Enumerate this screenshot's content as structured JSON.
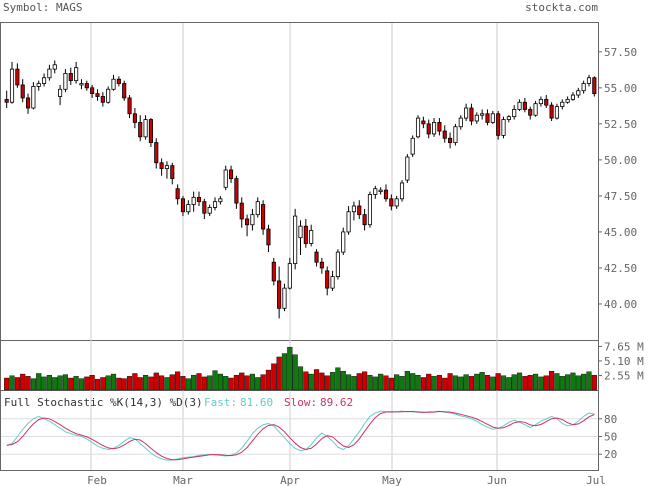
{
  "header": {
    "symbol_text": "Symbol: MAGS",
    "brand": "stockta.com"
  },
  "chart_data": {
    "type": "candlestick",
    "x_axis": {
      "ticks": [
        "Feb",
        "Mar",
        "Apr",
        "May",
        "Jun",
        "Jul"
      ]
    },
    "price": {
      "ylim": [
        37.5,
        59.5
      ],
      "ticks": [
        "57.50",
        "55.00",
        "52.50",
        "50.00",
        "47.50",
        "45.00",
        "42.50",
        "40.00"
      ],
      "candles": [
        [
          54.2,
          54.8,
          53.6,
          54.0
        ],
        [
          54.0,
          56.8,
          53.9,
          56.3
        ],
        [
          56.3,
          56.7,
          55.0,
          55.2
        ],
        [
          55.2,
          55.6,
          54.0,
          54.3
        ],
        [
          54.3,
          54.6,
          53.2,
          53.6
        ],
        [
          53.6,
          55.4,
          53.5,
          55.1
        ],
        [
          55.1,
          55.5,
          54.8,
          55.3
        ],
        [
          55.3,
          56.0,
          55.1,
          55.7
        ],
        [
          55.7,
          56.6,
          55.5,
          56.3
        ],
        [
          56.3,
          56.9,
          56.0,
          56.6
        ],
        [
          54.4,
          55.2,
          53.8,
          54.9
        ],
        [
          54.9,
          56.3,
          54.7,
          56.0
        ],
        [
          56.0,
          56.4,
          55.2,
          55.5
        ],
        [
          55.5,
          56.8,
          55.3,
          56.4
        ],
        [
          55.2,
          55.6,
          54.9,
          55.3
        ],
        [
          55.3,
          55.5,
          54.8,
          55.0
        ],
        [
          55.0,
          55.2,
          54.3,
          54.6
        ],
        [
          54.6,
          54.9,
          54.1,
          54.4
        ],
        [
          54.4,
          54.7,
          53.7,
          54.0
        ],
        [
          54.0,
          55.1,
          53.9,
          54.9
        ],
        [
          54.9,
          55.9,
          54.8,
          55.6
        ],
        [
          55.6,
          55.8,
          55.1,
          55.3
        ],
        [
          55.3,
          55.5,
          54.1,
          54.3
        ],
        [
          54.3,
          54.5,
          52.9,
          53.2
        ],
        [
          53.2,
          53.6,
          52.2,
          52.6
        ],
        [
          52.6,
          53.1,
          51.3,
          51.6
        ],
        [
          51.6,
          53.1,
          51.4,
          52.8
        ],
        [
          52.8,
          52.9,
          50.9,
          51.2
        ],
        [
          51.2,
          51.5,
          49.4,
          49.8
        ],
        [
          49.8,
          50.1,
          48.9,
          49.4
        ],
        [
          49.4,
          49.9,
          48.7,
          49.6
        ],
        [
          49.6,
          49.8,
          48.3,
          48.7
        ],
        [
          48.0,
          48.3,
          46.9,
          47.3
        ],
        [
          47.3,
          47.5,
          46.1,
          46.4
        ],
        [
          46.4,
          47.2,
          46.2,
          46.9
        ],
        [
          46.9,
          47.8,
          46.4,
          47.4
        ],
        [
          47.4,
          47.8,
          46.8,
          47.1
        ],
        [
          47.1,
          47.3,
          45.9,
          46.3
        ],
        [
          46.3,
          46.9,
          46.1,
          46.7
        ],
        [
          46.7,
          47.4,
          46.5,
          47.1
        ],
        [
          47.1,
          47.5,
          46.9,
          47.3
        ],
        [
          48.1,
          49.6,
          47.9,
          49.3
        ],
        [
          49.3,
          49.6,
          48.4,
          48.7
        ],
        [
          48.7,
          48.9,
          46.6,
          47.0
        ],
        [
          47.0,
          47.4,
          45.3,
          45.9
        ],
        [
          45.9,
          46.2,
          44.7,
          45.5
        ],
        [
          45.5,
          46.6,
          45.1,
          46.2
        ],
        [
          46.2,
          47.4,
          46.0,
          47.1
        ],
        [
          46.9,
          47.2,
          44.8,
          45.2
        ],
        [
          45.2,
          45.5,
          43.6,
          44.1
        ],
        [
          42.9,
          43.2,
          41.3,
          41.6
        ],
        [
          41.6,
          42.6,
          39.0,
          39.7
        ],
        [
          39.7,
          41.4,
          39.5,
          41.1
        ],
        [
          41.1,
          43.2,
          41.0,
          42.8
        ],
        [
          42.8,
          46.6,
          42.4,
          46.1
        ],
        [
          44.6,
          45.8,
          43.4,
          45.4
        ],
        [
          45.4,
          45.9,
          43.9,
          44.2
        ],
        [
          44.2,
          45.5,
          44.0,
          45.1
        ],
        [
          43.6,
          43.8,
          42.6,
          42.9
        ],
        [
          42.9,
          43.2,
          42.1,
          42.5
        ],
        [
          42.3,
          42.6,
          40.6,
          41.1
        ],
        [
          41.1,
          42.3,
          40.9,
          41.9
        ],
        [
          41.9,
          43.8,
          41.7,
          43.6
        ],
        [
          43.6,
          45.3,
          43.4,
          45.0
        ],
        [
          45.0,
          46.8,
          44.8,
          46.4
        ],
        [
          46.4,
          47.1,
          45.8,
          46.8
        ],
        [
          46.8,
          47.2,
          45.9,
          46.2
        ],
        [
          46.2,
          46.6,
          45.1,
          45.5
        ],
        [
          45.5,
          47.8,
          45.3,
          47.6
        ],
        [
          47.6,
          48.2,
          47.3,
          48.0
        ],
        [
          47.8,
          48.1,
          47.6,
          47.9
        ],
        [
          47.9,
          48.3,
          47.1,
          47.3
        ],
        [
          47.3,
          47.6,
          46.5,
          46.8
        ],
        [
          46.8,
          47.5,
          46.6,
          47.3
        ],
        [
          47.3,
          48.6,
          47.1,
          48.4
        ],
        [
          48.6,
          50.4,
          48.4,
          50.2
        ],
        [
          50.4,
          51.7,
          50.2,
          51.5
        ],
        [
          51.6,
          53.1,
          51.5,
          52.9
        ],
        [
          52.7,
          53.0,
          52.2,
          52.5
        ],
        [
          52.5,
          52.8,
          51.5,
          51.8
        ],
        [
          51.8,
          52.9,
          51.6,
          52.6
        ],
        [
          52.6,
          52.9,
          51.7,
          52.0
        ],
        [
          52.0,
          52.4,
          51.2,
          51.5
        ],
        [
          51.5,
          51.9,
          50.8,
          51.2
        ],
        [
          51.2,
          52.5,
          51.0,
          52.3
        ],
        [
          52.3,
          53.1,
          52.1,
          52.9
        ],
        [
          52.9,
          53.9,
          52.7,
          53.6
        ],
        [
          53.6,
          53.9,
          52.4,
          52.7
        ],
        [
          52.7,
          53.3,
          52.5,
          53.1
        ],
        [
          53.1,
          53.5,
          52.8,
          53.2
        ],
        [
          53.2,
          53.5,
          52.4,
          52.6
        ],
        [
          52.6,
          53.4,
          52.5,
          53.2
        ],
        [
          53.2,
          53.4,
          51.4,
          51.7
        ],
        [
          51.7,
          53.0,
          51.5,
          52.8
        ],
        [
          52.8,
          53.1,
          52.6,
          53.0
        ],
        [
          53.0,
          53.8,
          52.8,
          53.5
        ],
        [
          53.5,
          54.2,
          53.4,
          54.0
        ],
        [
          54.0,
          54.3,
          53.3,
          53.5
        ],
        [
          53.5,
          53.7,
          52.8,
          53.1
        ],
        [
          53.1,
          54.1,
          53.0,
          53.9
        ],
        [
          53.9,
          54.4,
          53.7,
          54.2
        ],
        [
          54.2,
          54.5,
          53.6,
          53.8
        ],
        [
          53.8,
          54.0,
          52.7,
          52.9
        ],
        [
          52.9,
          53.9,
          52.8,
          53.7
        ],
        [
          53.7,
          54.2,
          53.5,
          54.0
        ],
        [
          54.0,
          54.4,
          53.9,
          54.2
        ],
        [
          54.2,
          54.7,
          54.1,
          54.5
        ],
        [
          54.5,
          55.0,
          54.3,
          54.8
        ],
        [
          54.8,
          55.5,
          54.6,
          55.3
        ],
        [
          55.3,
          55.9,
          55.1,
          55.7
        ],
        [
          55.7,
          55.8,
          54.4,
          54.6
        ]
      ]
    },
    "volume": {
      "unit": "M",
      "ticks": [
        "7.65 M",
        "5.10 M",
        "2.55 M"
      ],
      "ylim": [
        0,
        8.6
      ],
      "values": [
        2.1,
        2.5,
        2.2,
        2.8,
        2.4,
        2.0,
        2.9,
        2.3,
        2.6,
        2.2,
        2.5,
        2.7,
        2.1,
        2.4,
        2.0,
        2.3,
        2.6,
        1.9,
        2.2,
        2.5,
        2.8,
        2.1,
        2.0,
        2.4,
        2.9,
        2.2,
        2.6,
        2.3,
        3.0,
        2.5,
        2.2,
        2.7,
        3.2,
        2.4,
        2.0,
        2.6,
        2.9,
        2.3,
        2.5,
        3.4,
        2.8,
        2.4,
        2.1,
        2.6,
        3.0,
        2.5,
        2.8,
        2.2,
        2.7,
        3.5,
        4.6,
        5.8,
        6.4,
        7.5,
        6.2,
        4.1,
        3.2,
        2.8,
        3.6,
        3.0,
        2.5,
        3.1,
        3.9,
        3.3,
        2.7,
        2.4,
        2.9,
        3.2,
        2.6,
        2.3,
        2.8,
        2.5,
        2.1,
        2.7,
        2.4,
        3.3,
        2.9,
        2.6,
        2.2,
        2.8,
        2.4,
        2.6,
        2.1,
        2.9,
        2.5,
        2.3,
        2.7,
        2.4,
        2.8,
        3.1,
        2.6,
        2.3,
        2.9,
        2.5,
        2.2,
        2.7,
        3.0,
        2.4,
        2.6,
        2.8,
        2.3,
        2.5,
        3.3,
        2.9,
        2.4,
        2.7,
        3.0,
        2.5,
        2.8,
        3.2,
        2.6
      ]
    },
    "stochastic": {
      "title": "Full Stochastic %K(14,3) %D(3)",
      "fast_label": "Fast:",
      "fast_value": "81.60",
      "slow_label": "Slow:",
      "slow_value": "89.62",
      "ylim": [
        0,
        100
      ],
      "ticks": [
        "80",
        "50",
        "20"
      ],
      "fast_color": "#66cccc",
      "slow_color": "#cc3366",
      "k_values": [
        35,
        38,
        50,
        62,
        72,
        80,
        84,
        80,
        76,
        70,
        64,
        58,
        55,
        52,
        50,
        46,
        40,
        34,
        30,
        28,
        30,
        35,
        42,
        48,
        46,
        38,
        30,
        22,
        16,
        12,
        10,
        10,
        12,
        14,
        15,
        16,
        18,
        19,
        20,
        19,
        18,
        17,
        18,
        22,
        30,
        42,
        55,
        64,
        70,
        72,
        68,
        58,
        48,
        38,
        30,
        26,
        28,
        36,
        48,
        56,
        50,
        42,
        32,
        28,
        34,
        46,
        58,
        72,
        84,
        90,
        93,
        92,
        91,
        92,
        93,
        92,
        92,
        91,
        90,
        92,
        92,
        93,
        91,
        90,
        88,
        85,
        83,
        80,
        76,
        70,
        66,
        62,
        64,
        68,
        74,
        78,
        74,
        70,
        65,
        70,
        76,
        80,
        84,
        80,
        72,
        68,
        70,
        76,
        84,
        90,
        88
      ]
    }
  }
}
